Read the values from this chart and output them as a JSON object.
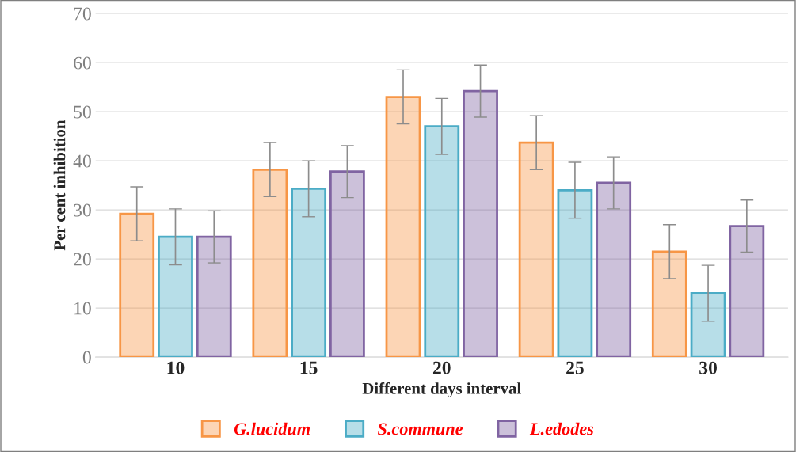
{
  "chart_data": {
    "type": "bar",
    "xlabel": "Different days interval",
    "ylabel": "Per cent inhibition",
    "categories": [
      "10",
      "15",
      "20",
      "25",
      "30"
    ],
    "series": [
      {
        "name": "G.lucidum",
        "color": "#f79646",
        "values": [
          29.2,
          38.2,
          53,
          43.7,
          21.5
        ],
        "errors": [
          5.5,
          5.5,
          5.5,
          5.5,
          5.5
        ]
      },
      {
        "name": "S.commune",
        "color": "#4bacc6",
        "values": [
          24.5,
          34.3,
          47,
          34,
          13
        ],
        "errors": [
          5.7,
          5.7,
          5.7,
          5.7,
          5.7
        ]
      },
      {
        "name": "L.edodes",
        "color": "#8064a2",
        "values": [
          24.5,
          37.8,
          54.2,
          35.5,
          26.7
        ],
        "errors": [
          5.3,
          5.3,
          5.3,
          5.3,
          5.3
        ]
      }
    ],
    "ylim": [
      0,
      70
    ],
    "yticks": [
      0,
      10,
      20,
      30,
      40,
      50,
      60,
      70
    ],
    "grid": "y",
    "legend": "bottom"
  }
}
